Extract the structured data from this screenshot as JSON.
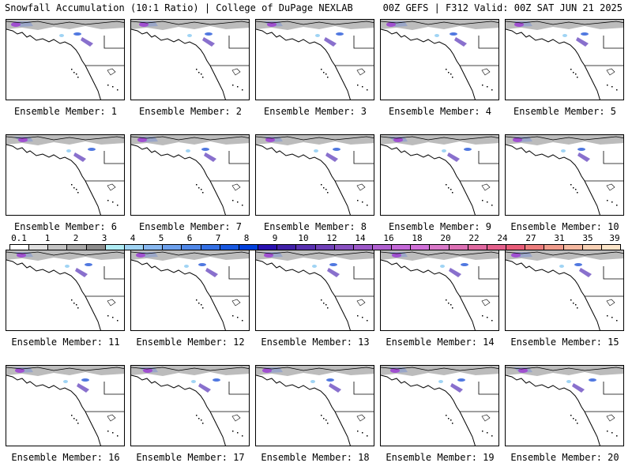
{
  "header": {
    "left_title": "Snowfall Accumulation (10:1 Ratio) | College of DuPage NEXLAB",
    "right_title": "00Z GEFS | F312 Valid: 00Z SAT JUN 21 2025"
  },
  "panels": [
    {
      "label": "Ensemble Member: 1"
    },
    {
      "label": "Ensemble Member: 2"
    },
    {
      "label": "Ensemble Member: 3"
    },
    {
      "label": "Ensemble Member: 4"
    },
    {
      "label": "Ensemble Member: 5"
    },
    {
      "label": "Ensemble Member: 6"
    },
    {
      "label": "Ensemble Member: 7"
    },
    {
      "label": "Ensemble Member: 8"
    },
    {
      "label": "Ensemble Member: 9"
    },
    {
      "label": "Ensemble Member: 10"
    },
    {
      "label": "Ensemble Member: 11"
    },
    {
      "label": "Ensemble Member: 12"
    },
    {
      "label": "Ensemble Member: 13"
    },
    {
      "label": "Ensemble Member: 14"
    },
    {
      "label": "Ensemble Member: 15"
    },
    {
      "label": "Ensemble Member: 16"
    },
    {
      "label": "Ensemble Member: 17"
    },
    {
      "label": "Ensemble Member: 18"
    },
    {
      "label": "Ensemble Member: 19"
    },
    {
      "label": "Ensemble Member: 20"
    }
  ],
  "colorbar": {
    "tick_labels": [
      "0.1",
      "1",
      "2",
      "3",
      "4",
      "5",
      "6",
      "7",
      "8",
      "9",
      "10",
      "12",
      "14",
      "16",
      "18",
      "20",
      "22",
      "24",
      "27",
      "31",
      "35",
      "39"
    ],
    "colors": [
      "#ffffff",
      "#e0e0e0",
      "#c4c4c4",
      "#a8a8a8",
      "#8c8c8c",
      "#b0ecf4",
      "#a0d4f4",
      "#88b8f0",
      "#6ca0ec",
      "#5088e8",
      "#3470e4",
      "#1858e0",
      "#0040dc",
      "#2810b0",
      "#4020a8",
      "#5830b0",
      "#7040b8",
      "#8850c0",
      "#9c58c8",
      "#b060d0",
      "#c468d8",
      "#d070d8",
      "#d878c8",
      "#dc70b4",
      "#e068a0",
      "#e4608c",
      "#e85c78",
      "#ec7c7c",
      "#f09c8c",
      "#f4b8a0",
      "#f8d0b4",
      "#fce4c8"
    ]
  }
}
